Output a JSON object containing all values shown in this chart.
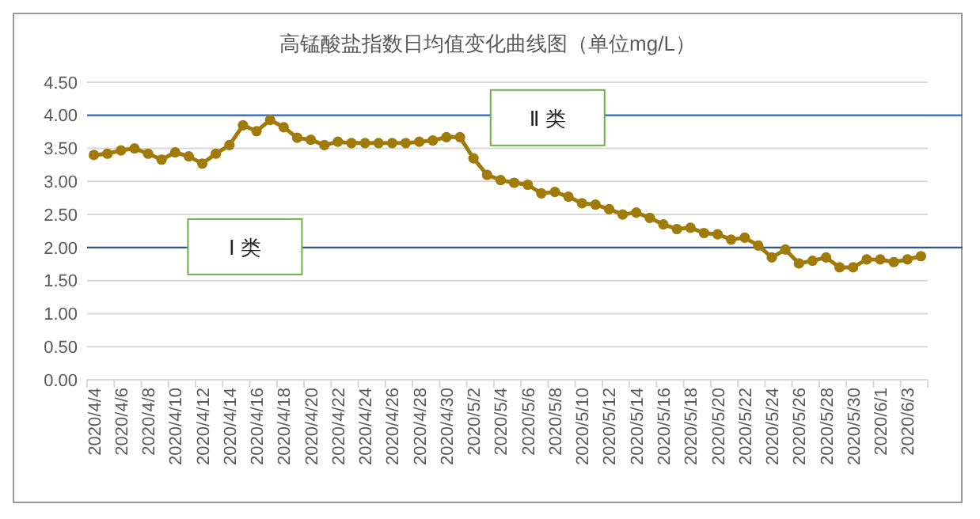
{
  "chart_data": {
    "type": "line",
    "title": "高锰酸盐指数日均值变化曲线图（单位mg/L）",
    "categories": [
      "2020/4/4",
      null,
      "2020/4/6",
      null,
      "2020/4/8",
      null,
      "2020/4/10",
      null,
      "2020/4/12",
      null,
      "2020/4/14",
      null,
      "2020/4/16",
      null,
      "2020/4/18",
      null,
      "2020/4/20",
      null,
      "2020/4/22",
      null,
      "2020/4/24",
      null,
      "2020/4/26",
      null,
      "2020/4/28",
      null,
      "2020/4/30",
      null,
      "2020/5/2",
      null,
      "2020/5/4",
      null,
      "2020/5/6",
      null,
      "2020/5/8",
      null,
      "2020/5/10",
      null,
      "2020/5/12",
      null,
      "2020/5/14",
      null,
      "2020/5/16",
      null,
      "2020/5/18",
      null,
      "2020/5/20",
      null,
      "2020/5/22",
      null,
      "2020/5/24",
      null,
      "2020/5/26",
      null,
      "2020/5/28",
      null,
      "2020/5/30",
      null,
      "2020/6/1",
      null,
      "2020/6/3",
      null
    ],
    "series": [
      {
        "color": "#a07b0a",
        "values": [
          3.4,
          3.42,
          3.47,
          3.5,
          3.42,
          3.33,
          3.44,
          3.38,
          3.27,
          3.42,
          3.55,
          3.85,
          3.76,
          3.93,
          3.82,
          3.66,
          3.63,
          3.55,
          3.6,
          3.58,
          3.58,
          3.58,
          3.58,
          3.58,
          3.6,
          3.62,
          3.67,
          3.67,
          3.35,
          3.1,
          3.02,
          2.98,
          2.95,
          2.82,
          2.84,
          2.77,
          2.67,
          2.65,
          2.58,
          2.5,
          2.53,
          2.45,
          2.35,
          2.28,
          2.3,
          2.22,
          2.2,
          2.12,
          2.15,
          2.03,
          1.85,
          1.97,
          1.76,
          1.8,
          1.85,
          1.7,
          1.7,
          1.82,
          1.82,
          1.78,
          1.82,
          1.87
        ]
      }
    ],
    "ylim": [
      0,
      4.5
    ],
    "yticks": [
      {
        "value": 0,
        "label": "0.00"
      },
      {
        "value": 0.5,
        "label": "0.50"
      },
      {
        "value": 1,
        "label": "1.00"
      },
      {
        "value": 1.5,
        "label": "1.50"
      },
      {
        "value": 2,
        "label": "2.00"
      },
      {
        "value": 2.5,
        "label": "2.50"
      },
      {
        "value": 3,
        "label": "3.00"
      },
      {
        "value": 3.5,
        "label": "3.50"
      },
      {
        "value": 4,
        "label": "4.00"
      },
      {
        "value": 4.5,
        "label": "4.50"
      }
    ],
    "grid": "y",
    "marker": "circle",
    "line_style": "solid",
    "ref_lines": [
      {
        "axis": "y",
        "value": 4,
        "label": "Ⅱ 类",
        "color": "#4472c4"
      },
      {
        "axis": "y",
        "value": 2,
        "label": "Ⅰ 类",
        "color": "#2f5597"
      }
    ]
  }
}
